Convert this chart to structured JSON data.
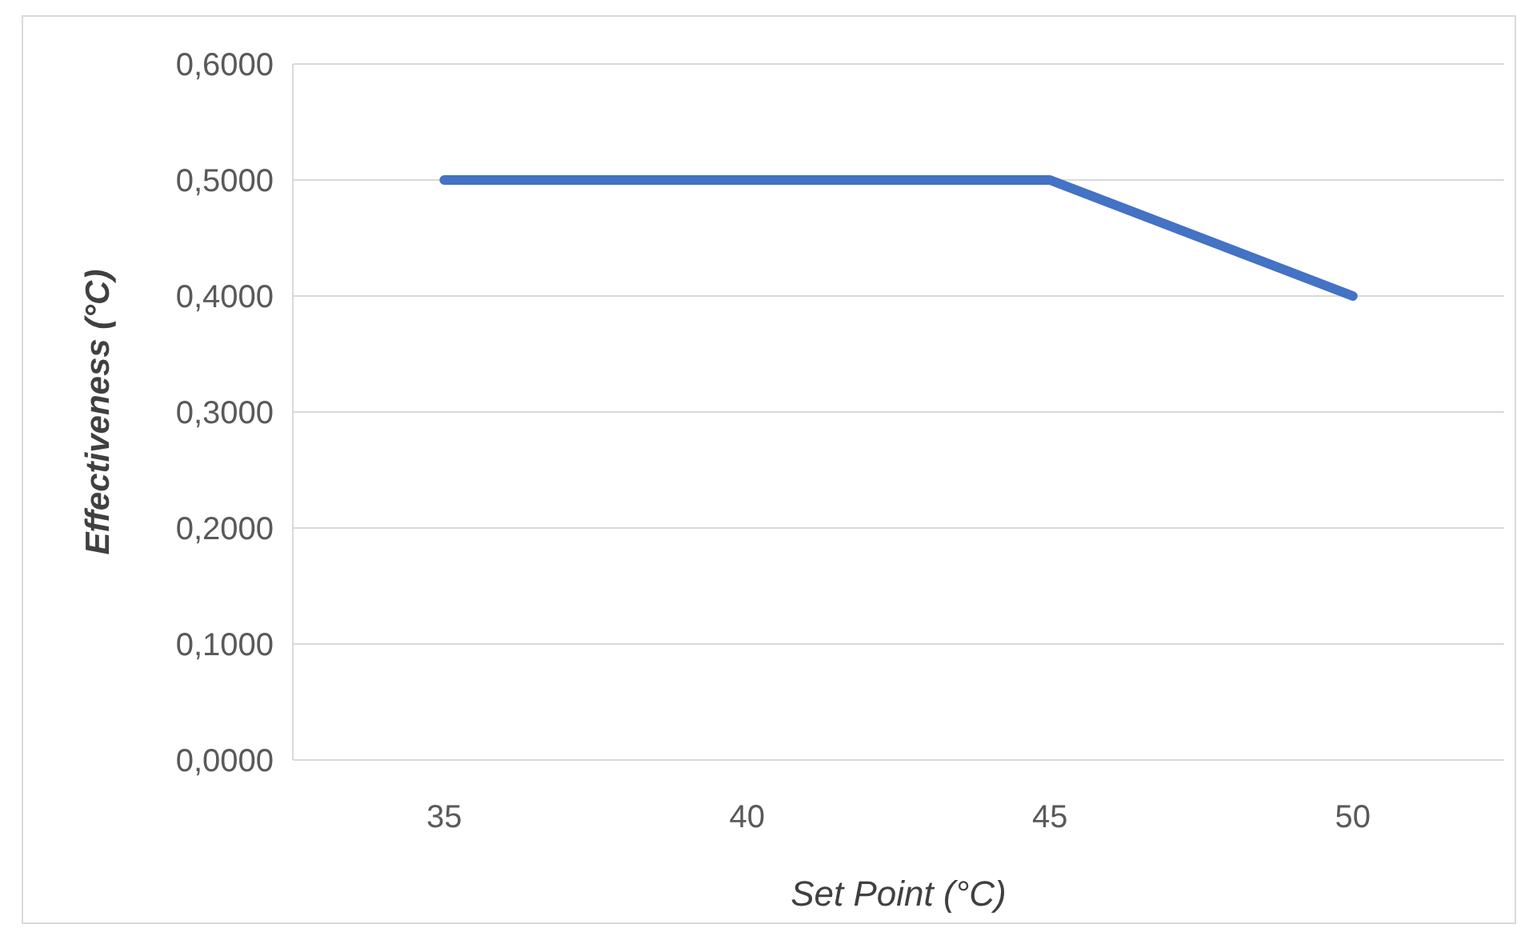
{
  "chart_data": {
    "type": "line",
    "xlabel": "Set Point (°C)",
    "ylabel": "Effectiveness (°C)",
    "categories": [
      "35",
      "40",
      "45",
      "50"
    ],
    "series": [
      {
        "color": "#4472c4",
        "values": [
          0.5,
          0.5,
          0.5,
          0.4
        ]
      }
    ],
    "ylim": [
      0,
      0.6
    ],
    "yticks": [
      {
        "value": 0,
        "label": "0,0000"
      },
      {
        "value": 0.1,
        "label": "0,1000"
      },
      {
        "value": 0.2,
        "label": "0,2000"
      },
      {
        "value": 0.3,
        "label": "0,3000"
      },
      {
        "value": 0.4,
        "label": "0,4000"
      },
      {
        "value": 0.5,
        "label": "0,5000"
      },
      {
        "value": 0.6,
        "label": "0,6000"
      }
    ],
    "grid": "y",
    "marker": "none",
    "line_style": "solid"
  }
}
